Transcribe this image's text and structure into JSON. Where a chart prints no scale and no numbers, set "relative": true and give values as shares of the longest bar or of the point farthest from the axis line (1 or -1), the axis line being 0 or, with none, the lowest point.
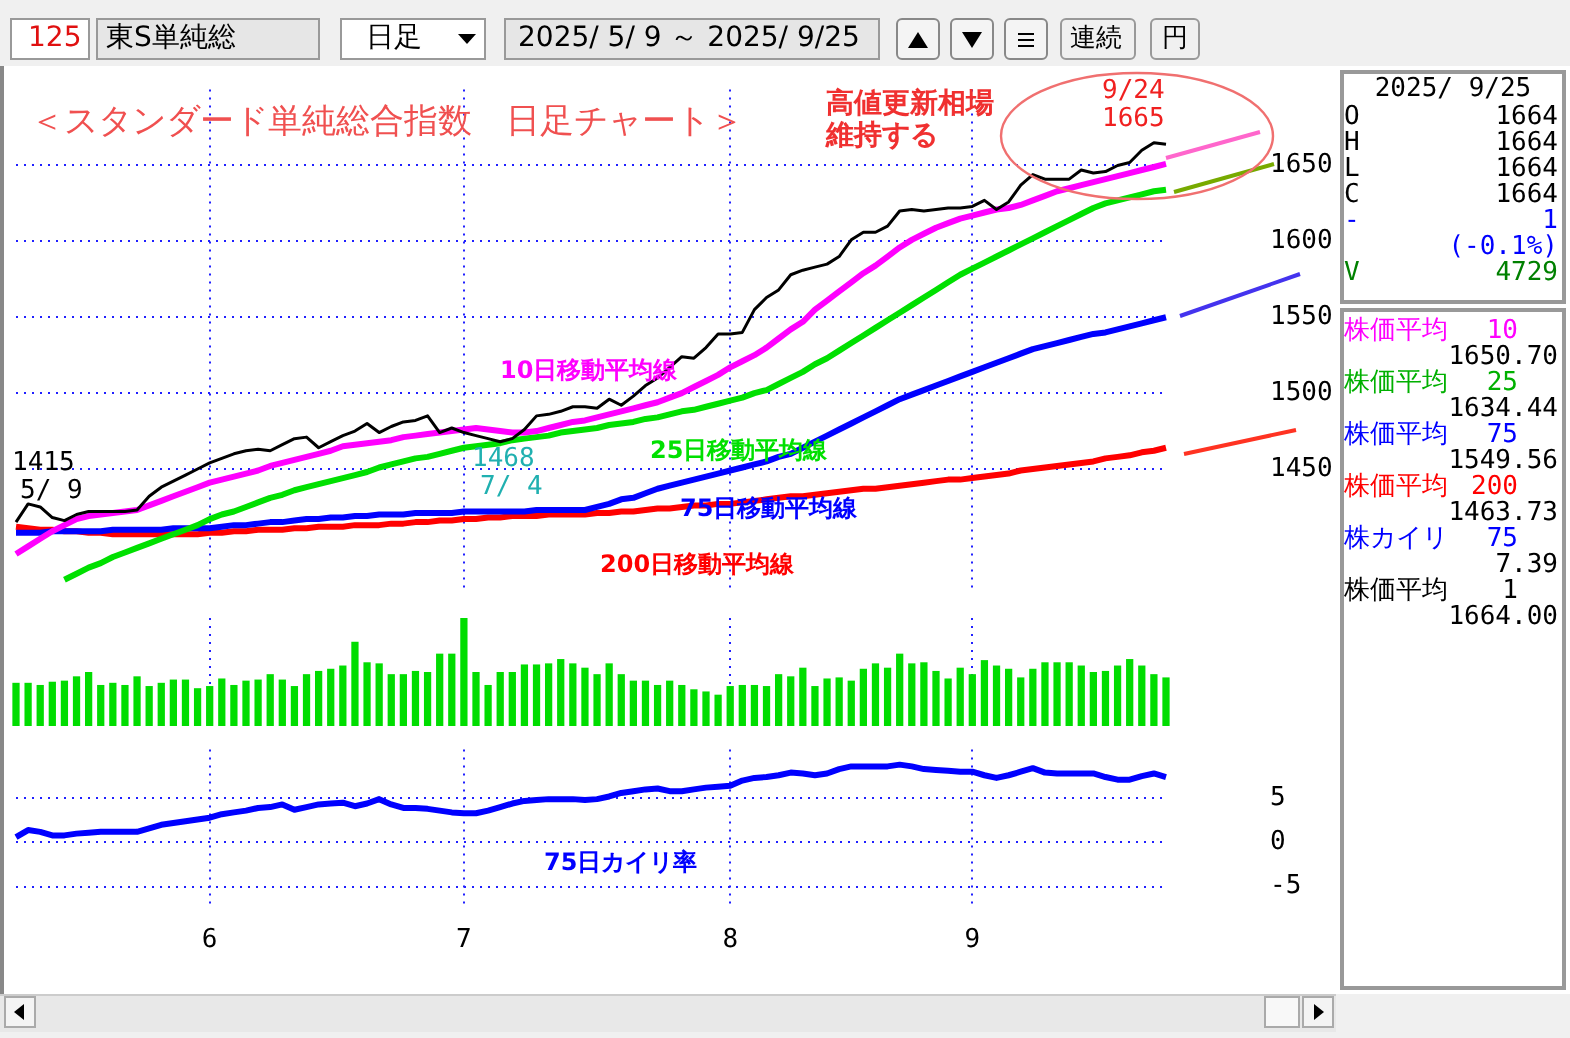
{
  "chart_data": [
    {
      "type": "other",
      "annotations": [
        "125",
        "東S単純総",
        "日足",
        "2025/ 5/ 9 ～ 2025/ 9/25",
        "連続",
        "円"
      ]
    },
    {
      "type": "line",
      "title": "＜スタンダード単純総合指数　日足チャート＞",
      "categories": [
        null,
        null,
        null,
        null,
        null,
        null,
        null,
        null,
        null,
        null,
        null,
        null,
        null,
        null,
        null,
        null,
        "6",
        null,
        null,
        null,
        null,
        null,
        null,
        null,
        null,
        null,
        null,
        null,
        null,
        null,
        null,
        null,
        null,
        null,
        null,
        null,
        null,
        "7",
        null,
        null,
        null,
        null,
        null,
        null,
        null,
        null,
        null,
        null,
        null,
        null,
        null,
        null,
        null,
        null,
        null,
        null,
        null,
        null,
        null,
        "8",
        null,
        null,
        null,
        null,
        null,
        null,
        null,
        null,
        null,
        null,
        null,
        null,
        null,
        null,
        null,
        null,
        null,
        null,
        null,
        "9",
        null,
        null,
        null,
        null,
        null,
        null,
        null,
        null,
        null,
        null,
        null,
        null,
        null,
        null,
        null,
        null
      ],
      "series": [
        {
          "color": "#000000",
          "values": [
            1415,
            1427,
            1425,
            1418,
            1416,
            1420,
            1422,
            1422,
            1422,
            1422,
            1423,
            1432,
            1438,
            1442,
            1446,
            1450,
            1454,
            1457,
            1460,
            1462,
            1463,
            1462,
            1466,
            1470,
            1471,
            1464,
            1468,
            1472,
            1475,
            1480,
            1474,
            1478,
            1481,
            1482,
            1485,
            1474,
            1477,
            1474,
            1472,
            1470,
            1468,
            1470,
            1476,
            1485,
            1486,
            1488,
            1491,
            1491,
            1490,
            1496,
            1492,
            1498,
            1505,
            1510,
            1517,
            1524,
            1523,
            1530,
            1539,
            1539,
            1540,
            1555,
            1563,
            1568,
            1578,
            1581,
            1583,
            1585,
            1590,
            1601,
            1606,
            1606,
            1610,
            1620,
            1621,
            1620,
            1621,
            1622,
            1622,
            1623,
            1627,
            1621,
            1626,
            1637,
            1644,
            1641,
            1641,
            1641,
            1647,
            1645,
            1646,
            1650,
            1652,
            1660,
            1665,
            1664
          ]
        },
        {
          "name": "10日移動平均線",
          "color": "#ff00ff",
          "values": [
            1394,
            1399,
            1404,
            1409,
            1413,
            1417,
            1419,
            1420,
            1421,
            1422,
            1423,
            1426,
            1429,
            1432,
            1435,
            1438,
            1441,
            1443,
            1445,
            1447,
            1449,
            1452,
            1454,
            1456,
            1458,
            1460,
            1462,
            1465,
            1466,
            1467,
            1468,
            1469,
            1471,
            1472,
            1473,
            1474,
            1475,
            1476,
            1477,
            1476,
            1475,
            1474,
            1474,
            1475,
            1477,
            1479,
            1481,
            1482,
            1484,
            1486,
            1488,
            1490,
            1492,
            1494,
            1497,
            1500,
            1504,
            1508,
            1512,
            1517,
            1521,
            1525,
            1530,
            1536,
            1542,
            1547,
            1555,
            1561,
            1567,
            1573,
            1579,
            1584,
            1590,
            1596,
            1601,
            1605,
            1609,
            1612,
            1615,
            1617,
            1619,
            1621,
            1622,
            1624,
            1627,
            1630,
            1633,
            1635,
            1637,
            1639,
            1641,
            1643,
            1645,
            1647,
            1649,
            1651
          ]
        },
        {
          "name": "25日移動平均線",
          "color": "#00e000",
          "values": [
            null,
            null,
            null,
            null,
            1377,
            1381,
            1385,
            1388,
            1392,
            1395,
            1398,
            1401,
            1404,
            1407,
            1410,
            1413,
            1417,
            1420,
            1422,
            1425,
            1428,
            1431,
            1433,
            1436,
            1438,
            1440,
            1442,
            1444,
            1446,
            1448,
            1451,
            1453,
            1455,
            1457,
            1458,
            1460,
            1462,
            1464,
            1465,
            1466,
            1467,
            1469,
            1470,
            1471,
            1472,
            1474,
            1475,
            1476,
            1477,
            1479,
            1480,
            1481,
            1483,
            1484,
            1486,
            1488,
            1489,
            1491,
            1493,
            1495,
            1497,
            1500,
            1502,
            1506,
            1510,
            1514,
            1519,
            1523,
            1528,
            1533,
            1538,
            1543,
            1548,
            1553,
            1558,
            1563,
            1568,
            1573,
            1578,
            1582,
            1586,
            1590,
            1594,
            1598,
            1602,
            1606,
            1610,
            1614,
            1618,
            1622,
            1625,
            1627,
            1629,
            1631,
            1633,
            1634
          ]
        },
        {
          "name": "75日移動平均線",
          "color": "#0000ff",
          "values": [
            1408,
            1408,
            1408,
            1409,
            1409,
            1409,
            1409,
            1409,
            1410,
            1410,
            1410,
            1410,
            1410,
            1411,
            1411,
            1411,
            1411,
            1412,
            1413,
            1413,
            1414,
            1415,
            1415,
            1416,
            1417,
            1417,
            1418,
            1418,
            1419,
            1419,
            1420,
            1420,
            1420,
            1421,
            1421,
            1421,
            1421,
            1422,
            1422,
            1422,
            1422,
            1422,
            1422,
            1423,
            1423,
            1423,
            1423,
            1423,
            1425,
            1427,
            1430,
            1431,
            1434,
            1437,
            1439,
            1441,
            1443,
            1445,
            1447,
            1449,
            1451,
            1453,
            1455,
            1458,
            1460,
            1464,
            1468,
            1472,
            1476,
            1480,
            1484,
            1488,
            1492,
            1496,
            1499,
            1502,
            1505,
            1508,
            1511,
            1514,
            1517,
            1520,
            1523,
            1526,
            1529,
            1531,
            1533,
            1535,
            1537,
            1539,
            1540,
            1542,
            1544,
            1546,
            1548,
            1550
          ]
        },
        {
          "name": "200日移動平均線",
          "color": "#ff0000",
          "values": [
            1412,
            1411,
            1410,
            1410,
            1409,
            1409,
            1408,
            1408,
            1407,
            1407,
            1407,
            1407,
            1407,
            1407,
            1407,
            1407,
            1408,
            1408,
            1409,
            1409,
            1410,
            1410,
            1410,
            1411,
            1411,
            1412,
            1412,
            1412,
            1413,
            1413,
            1413,
            1414,
            1414,
            1415,
            1415,
            1416,
            1416,
            1417,
            1417,
            1418,
            1418,
            1419,
            1419,
            1419,
            1420,
            1420,
            1420,
            1420,
            1421,
            1421,
            1422,
            1422,
            1423,
            1424,
            1424,
            1425,
            1426,
            1426,
            1427,
            1427,
            1428,
            1429,
            1430,
            1431,
            1432,
            1432,
            1433,
            1434,
            1435,
            1436,
            1437,
            1437,
            1438,
            1439,
            1440,
            1441,
            1442,
            1443,
            1443,
            1444,
            1445,
            1446,
            1447,
            1449,
            1450,
            1451,
            1452,
            1453,
            1454,
            1455,
            1457,
            1458,
            1459,
            1461,
            1462,
            1464
          ]
        }
      ],
      "ylim": [
        1370,
        1700
      ],
      "yticks": [
        1450,
        1500,
        1550,
        1600,
        1650
      ],
      "grid": true,
      "tick_labels": "y",
      "annotations": [
        "高値更新相場",
        "維持する",
        "9/24",
        "1665",
        "1468",
        "7/ 4",
        "1415",
        "5/ 9"
      ]
    },
    {
      "type": "bar",
      "relative": true,
      "color": "#00dd00",
      "grid": "x",
      "tick_labels": false,
      "categories": [
        null,
        null,
        null,
        null,
        null,
        null,
        null,
        null,
        null,
        null,
        null,
        null,
        null,
        null,
        null,
        null,
        "6",
        null,
        null,
        null,
        null,
        null,
        null,
        null,
        null,
        null,
        null,
        null,
        null,
        null,
        null,
        null,
        null,
        null,
        null,
        null,
        null,
        "7",
        null,
        null,
        null,
        null,
        null,
        null,
        null,
        null,
        null,
        null,
        null,
        null,
        null,
        null,
        null,
        null,
        null,
        null,
        null,
        null,
        null,
        "8",
        null,
        null,
        null,
        null,
        null,
        null,
        null,
        null,
        null,
        null,
        null,
        null,
        null,
        null,
        null,
        null,
        null,
        null,
        null,
        "9",
        null,
        null,
        null,
        null,
        null,
        null,
        null,
        null,
        null,
        null,
        null,
        null,
        null,
        null,
        null,
        null
      ],
      "values": [
        0.4,
        0.4,
        0.38,
        0.41,
        0.42,
        0.46,
        0.5,
        0.38,
        0.4,
        0.38,
        0.46,
        0.37,
        0.4,
        0.43,
        0.43,
        0.35,
        0.37,
        0.44,
        0.38,
        0.42,
        0.43,
        0.48,
        0.43,
        0.37,
        0.48,
        0.51,
        0.53,
        0.56,
        0.78,
        0.59,
        0.58,
        0.48,
        0.48,
        0.51,
        0.5,
        0.67,
        0.67,
        1,
        0.5,
        0.38,
        0.5,
        0.5,
        0.57,
        0.57,
        0.58,
        0.62,
        0.58,
        0.54,
        0.48,
        0.58,
        0.48,
        0.42,
        0.42,
        0.38,
        0.42,
        0.38,
        0.34,
        0.32,
        0.29,
        0.37,
        0.38,
        0.38,
        0.37,
        0.48,
        0.46,
        0.54,
        0.37,
        0.44,
        0.45,
        0.42,
        0.53,
        0.58,
        0.54,
        0.67,
        0.58,
        0.59,
        0.51,
        0.44,
        0.54,
        0.48,
        0.61,
        0.56,
        0.53,
        0.45,
        0.53,
        0.59,
        0.59,
        0.59,
        0.56,
        0.5,
        0.51,
        0.56,
        0.62,
        0.56,
        0.48,
        0.45
      ]
    },
    {
      "type": "line",
      "grid": true,
      "ylim": [
        -7.5,
        10.5
      ],
      "yticks": [
        -5,
        0,
        5
      ],
      "categories": [
        null,
        null,
        null,
        null,
        null,
        null,
        null,
        null,
        null,
        null,
        null,
        null,
        null,
        null,
        null,
        null,
        "6",
        null,
        null,
        null,
        null,
        null,
        null,
        null,
        null,
        null,
        null,
        null,
        null,
        null,
        null,
        null,
        null,
        null,
        null,
        null,
        null,
        "7",
        null,
        null,
        null,
        null,
        null,
        null,
        null,
        null,
        null,
        null,
        null,
        null,
        null,
        null,
        null,
        null,
        null,
        null,
        null,
        null,
        null,
        "8",
        null,
        null,
        null,
        null,
        null,
        null,
        null,
        null,
        null,
        null,
        null,
        null,
        null,
        null,
        null,
        null,
        null,
        null,
        null,
        "9",
        null,
        null,
        null,
        null,
        null,
        null,
        null,
        null,
        null,
        null,
        null,
        null,
        null,
        null,
        null,
        null
      ],
      "series": [
        {
          "name": "75日カイリ率",
          "color": "#0000ff",
          "values": [
            0.6,
            1.4,
            1.2,
            0.8,
            0.8,
            1.0,
            1.1,
            1.2,
            1.2,
            1.2,
            1.2,
            1.6,
            2.0,
            2.2,
            2.4,
            2.6,
            2.8,
            3.2,
            3.4,
            3.6,
            3.9,
            4.0,
            4.3,
            3.7,
            4.0,
            4.3,
            4.4,
            4.5,
            4.1,
            4.4,
            4.9,
            4.3,
            3.9,
            3.9,
            3.8,
            3.6,
            3.4,
            3.3,
            3.3,
            3.6,
            4.0,
            4.4,
            4.7,
            4.8,
            4.9,
            4.9,
            4.9,
            4.8,
            4.9,
            5.2,
            5.6,
            5.8,
            6.0,
            6.1,
            5.8,
            5.8,
            6.0,
            6.2,
            6.3,
            6.4,
            7.0,
            7.3,
            7.4,
            7.6,
            7.9,
            7.8,
            7.6,
            7.8,
            8.3,
            8.6,
            8.6,
            8.6,
            8.6,
            8.8,
            8.6,
            8.3,
            8.2,
            8.1,
            8.0,
            8.0,
            7.6,
            7.3,
            7.6,
            8.0,
            8.4,
            7.9,
            7.8,
            7.8,
            7.8,
            7.8,
            7.4,
            7.1,
            7.1,
            7.5,
            7.8,
            7.4
          ]
        }
      ]
    },
    {
      "type": "other",
      "annotations": [
        "2025/ 9/25",
        "O",
        "1664",
        "H",
        "1664",
        "L",
        "1664",
        "C",
        "1664",
        "-",
        "1",
        "(-0.1%)",
        "V",
        "4729",
        "株価平均",
        "10",
        "1650.70",
        "株価平均",
        "25",
        "1634.44",
        "株価平均",
        "75",
        "1549.56",
        "株価平均",
        "200",
        "1463.73",
        "株カイリ",
        "75",
        "7.39",
        "株価平均",
        "1",
        "1664.00"
      ]
    }
  ]
}
